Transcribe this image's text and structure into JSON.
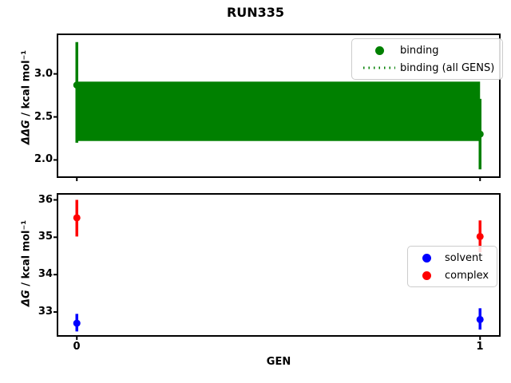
{
  "title": "RUN335",
  "colors": {
    "green": "#008000",
    "blue": "#0000ff",
    "red": "#ff0000",
    "axis": "#000000",
    "legend_border": "#cccccc",
    "background": "#ffffff"
  },
  "chart_data": [
    {
      "type": "scatter",
      "title": "RUN335",
      "xlabel": "",
      "ylabel": "ΔΔG / kcal mol⁻¹",
      "ylabel_math": "ΔΔG",
      "ylabel_units": " / kcal mol⁻¹",
      "xlim": [
        -0.048,
        1.049
      ],
      "ylim": [
        1.8,
        3.46
      ],
      "grid": false,
      "legend_position": "upper right",
      "yticks": [
        3.0,
        2.5,
        2.0
      ],
      "ytick_labels": [
        "3.0",
        "2.5",
        "2.0"
      ],
      "xticks": [
        0,
        1
      ],
      "xtick_labels": [],
      "series": [
        {
          "name": "binding",
          "color": "green",
          "marker": "circle",
          "x": [
            0,
            1
          ],
          "y": [
            2.87,
            2.3
          ],
          "yerr_lo": [
            2.2,
            1.89
          ],
          "yerr_hi": [
            3.37,
            2.71
          ]
        }
      ],
      "band": {
        "name": "binding (all GENS)",
        "color": "green",
        "style": "dotted",
        "x": [
          0,
          1
        ],
        "center": 2.57,
        "lo": 2.22,
        "hi": 2.91
      }
    },
    {
      "type": "scatter",
      "title": "",
      "xlabel": "GEN",
      "ylabel": "ΔG / kcal mol⁻¹",
      "ylabel_math": "ΔG",
      "ylabel_units": " / kcal mol⁻¹",
      "xlim": [
        -0.048,
        1.049
      ],
      "ylim": [
        32.36,
        36.16
      ],
      "grid": false,
      "legend_position": "center right",
      "yticks": [
        36,
        35,
        34,
        33
      ],
      "ytick_labels": [
        "36",
        "35",
        "34",
        "33"
      ],
      "xticks": [
        0,
        1
      ],
      "xtick_labels": [
        "0",
        "1"
      ],
      "series": [
        {
          "name": "solvent",
          "color": "blue",
          "marker": "circle",
          "x": [
            0,
            1
          ],
          "y": [
            32.7,
            32.8
          ],
          "yerr_lo": [
            32.48,
            32.53
          ],
          "yerr_hi": [
            32.95,
            33.1
          ]
        },
        {
          "name": "complex",
          "color": "red",
          "marker": "circle",
          "x": [
            0,
            1
          ],
          "y": [
            35.52,
            35.02
          ],
          "yerr_lo": [
            35.02,
            34.6
          ],
          "yerr_hi": [
            36.0,
            35.45
          ]
        }
      ]
    }
  ]
}
